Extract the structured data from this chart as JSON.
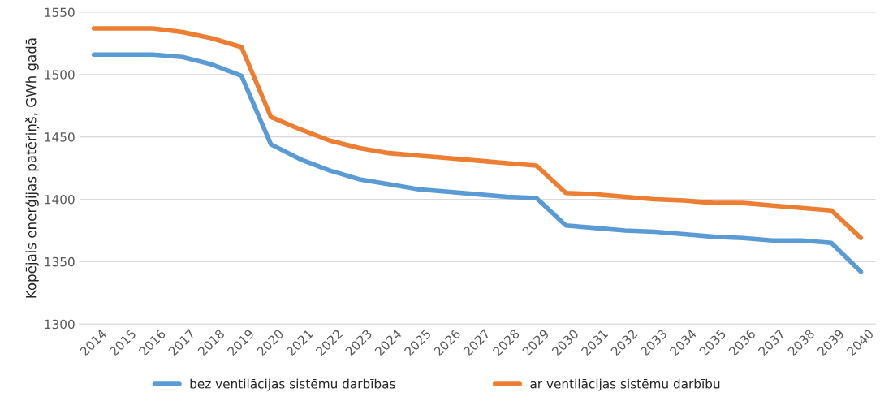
{
  "chart_data": {
    "type": "line",
    "ylabel": "Kopējais enerģijas patēriņš, GWh gadā",
    "categories": [
      "2014",
      "2015",
      "2016",
      "2017",
      "2018",
      "2019",
      "2020",
      "2021",
      "2022",
      "2023",
      "2024",
      "2025",
      "2026",
      "2027",
      "2028",
      "2029",
      "2030",
      "2031",
      "2032",
      "2033",
      "2034",
      "2035",
      "2036",
      "2037",
      "2038",
      "2039",
      "2040"
    ],
    "series": [
      {
        "name": "bez ventilācijas sistēmu darbības",
        "color": "#5b9bd5",
        "values": [
          1516,
          1516,
          1516,
          1514,
          1508,
          1499,
          1444,
          1432,
          1423,
          1416,
          1412,
          1408,
          1406,
          1404,
          1402,
          1401,
          1379,
          1377,
          1375,
          1374,
          1372,
          1370,
          1369,
          1367,
          1367,
          1365,
          1342
        ]
      },
      {
        "name": "ar ventilācijas sistēmu darbību",
        "color": "#ed7d31",
        "values": [
          1537,
          1537,
          1537,
          1534,
          1529,
          1522,
          1466,
          1456,
          1447,
          1441,
          1437,
          1435,
          1433,
          1431,
          1429,
          1427,
          1405,
          1404,
          1402,
          1400,
          1399,
          1397,
          1397,
          1395,
          1393,
          1391,
          1369
        ]
      }
    ],
    "ylim": [
      1300,
      1550
    ],
    "yticks": [
      1300,
      1350,
      1400,
      1450,
      1500,
      1550
    ],
    "grid": "y",
    "legend": "bottom",
    "marker": "none",
    "line_style": "solid"
  }
}
